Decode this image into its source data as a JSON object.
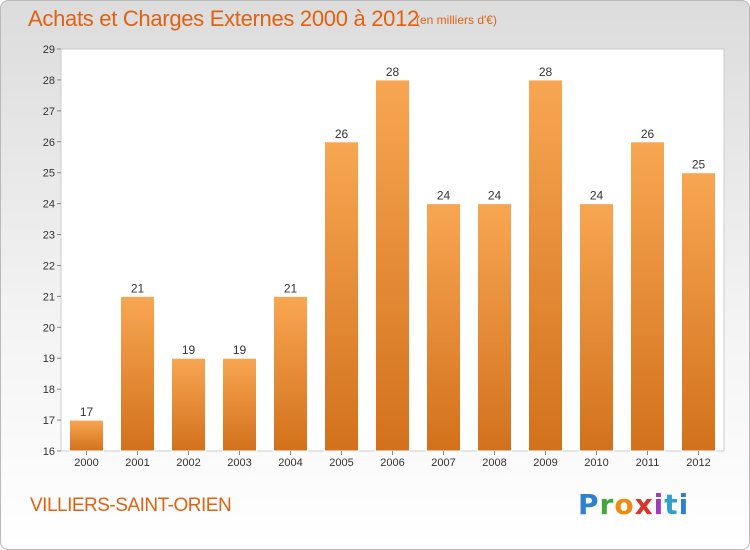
{
  "header": {
    "title": "Achats et Charges Externes 2000 à 2012",
    "unit": "(en milliers d'€)"
  },
  "footer": {
    "commune": "VILLIERS-SAINT-ORIEN",
    "logo": "Proxiti"
  },
  "colors": {
    "bar_top": "#f8a652",
    "bar_bottom": "#d2711c",
    "title": "#e06210"
  },
  "chart_data": {
    "type": "bar",
    "title": "Achats et Charges Externes 2000 à 2012",
    "subtitle": "(en milliers d'€)",
    "categories": [
      "2000",
      "2001",
      "2002",
      "2003",
      "2004",
      "2005",
      "2006",
      "2007",
      "2008",
      "2009",
      "2010",
      "2011",
      "2012"
    ],
    "values": [
      17,
      21,
      19,
      19,
      21,
      26,
      28,
      24,
      24,
      28,
      24,
      26,
      25
    ],
    "xlabel": "",
    "ylabel": "",
    "ylim": [
      16,
      29
    ],
    "yticks": [
      16,
      17,
      18,
      19,
      20,
      21,
      22,
      23,
      24,
      25,
      26,
      27,
      28,
      29
    ],
    "grid": false,
    "data_labels": true
  }
}
